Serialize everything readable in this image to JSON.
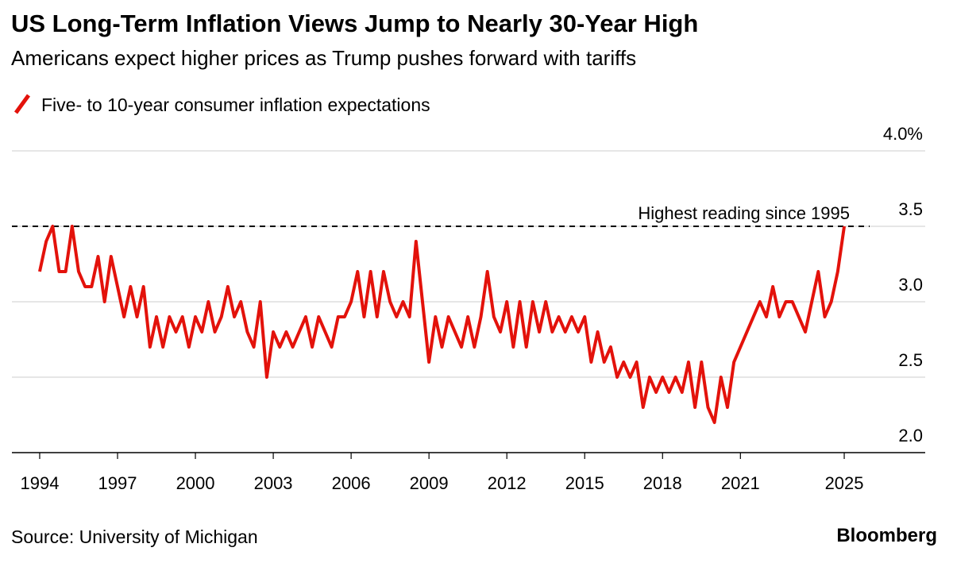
{
  "chart_data": {
    "type": "line",
    "title": "US Long-Term Inflation Views Jump to Nearly 30-Year High",
    "subtitle": "Americans expect higher prices as Trump pushes forward with tariffs",
    "source": "Source: University of Michigan",
    "brand": "Bloomberg",
    "x": [
      1994,
      1994.25,
      1994.5,
      1994.75,
      1995,
      1995.25,
      1995.5,
      1995.75,
      1996,
      1996.25,
      1996.5,
      1996.75,
      1997,
      1997.25,
      1997.5,
      1997.75,
      1998,
      1998.25,
      1998.5,
      1998.75,
      1999,
      1999.25,
      1999.5,
      1999.75,
      2000,
      2000.25,
      2000.5,
      2000.75,
      2001,
      2001.25,
      2001.5,
      2001.75,
      2002,
      2002.25,
      2002.5,
      2002.75,
      2003,
      2003.25,
      2003.5,
      2003.75,
      2004,
      2004.25,
      2004.5,
      2004.75,
      2005,
      2005.25,
      2005.5,
      2005.75,
      2006,
      2006.25,
      2006.5,
      2006.75,
      2007,
      2007.25,
      2007.5,
      2007.75,
      2008,
      2008.25,
      2008.5,
      2008.75,
      2009,
      2009.25,
      2009.5,
      2009.75,
      2010,
      2010.25,
      2010.5,
      2010.75,
      2011,
      2011.25,
      2011.5,
      2011.75,
      2012,
      2012.25,
      2012.5,
      2012.75,
      2013,
      2013.25,
      2013.5,
      2013.75,
      2014,
      2014.25,
      2014.5,
      2014.75,
      2015,
      2015.25,
      2015.5,
      2015.75,
      2016,
      2016.25,
      2016.5,
      2016.75,
      2017,
      2017.25,
      2017.5,
      2017.75,
      2018,
      2018.25,
      2018.5,
      2018.75,
      2019,
      2019.25,
      2019.5,
      2019.75,
      2020,
      2020.25,
      2020.5,
      2020.75,
      2021,
      2021.25,
      2021.5,
      2021.75,
      2022,
      2022.25,
      2022.5,
      2022.75,
      2023,
      2023.25,
      2023.5,
      2023.75,
      2024,
      2024.25,
      2024.5,
      2024.75,
      2025
    ],
    "series": [
      {
        "name": "Five- to 10-year consumer inflation expectations",
        "color": "#e3120b",
        "values": [
          3.2,
          3.4,
          3.5,
          3.2,
          3.2,
          3.5,
          3.2,
          3.1,
          3.1,
          3.3,
          3.0,
          3.3,
          3.1,
          2.9,
          3.1,
          2.9,
          3.1,
          2.7,
          2.9,
          2.7,
          2.9,
          2.8,
          2.9,
          2.7,
          2.9,
          2.8,
          3.0,
          2.8,
          2.9,
          3.1,
          2.9,
          3.0,
          2.8,
          2.7,
          3.0,
          2.5,
          2.8,
          2.7,
          2.8,
          2.7,
          2.8,
          2.9,
          2.7,
          2.9,
          2.8,
          2.7,
          2.9,
          2.9,
          3.0,
          3.2,
          2.9,
          3.2,
          2.9,
          3.2,
          3.0,
          2.9,
          3.0,
          2.9,
          3.4,
          3.0,
          2.6,
          2.9,
          2.7,
          2.9,
          2.8,
          2.7,
          2.9,
          2.7,
          2.9,
          3.2,
          2.9,
          2.8,
          3.0,
          2.7,
          3.0,
          2.7,
          3.0,
          2.8,
          3.0,
          2.8,
          2.9,
          2.8,
          2.9,
          2.8,
          2.9,
          2.6,
          2.8,
          2.6,
          2.7,
          2.5,
          2.6,
          2.5,
          2.6,
          2.3,
          2.5,
          2.4,
          2.5,
          2.4,
          2.5,
          2.4,
          2.6,
          2.3,
          2.6,
          2.3,
          2.2,
          2.5,
          2.3,
          2.6,
          2.7,
          2.8,
          2.9,
          3.0,
          2.9,
          3.1,
          2.9,
          3.0,
          3.0,
          2.9,
          2.8,
          3.0,
          3.2,
          2.9,
          3.0,
          3.2,
          3.5
        ]
      }
    ],
    "reference_line": {
      "value": 3.5,
      "label": "Highest reading since 1995"
    },
    "xlim": [
      1992.93,
      2028.12
    ],
    "xticks": [
      1994,
      1997,
      2000,
      2003,
      2006,
      2009,
      2012,
      2015,
      2018,
      2021,
      2025
    ],
    "ylim": [
      2.0,
      4.0
    ],
    "yticks": [
      {
        "value": 2.0,
        "label": "2.0"
      },
      2.5,
      {
        "value": 3.0,
        "label": "3.0"
      },
      3.5,
      {
        "value": 4.0,
        "label": "4.0%"
      }
    ],
    "grid": true
  }
}
